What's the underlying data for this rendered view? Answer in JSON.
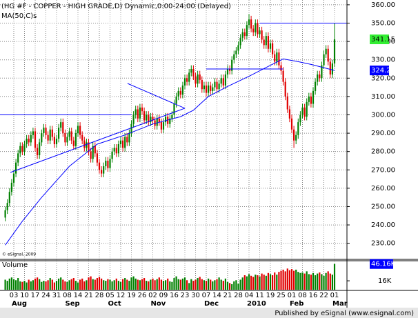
{
  "chart_data": {
    "type": "candlestick",
    "title": "(HG #F - COPPER - HIGH GRADE,D) Dynamic,0:00-24:00 (Delayed)",
    "copyright": "© eSignal, 2009",
    "footer": "Published by eSignal (www.esignal.com)",
    "up_color": "#008000",
    "down_color": "#e00000",
    "grid": true,
    "ylim": [
      221.6,
      362.6
    ],
    "yticks": [
      {
        "value": 230,
        "label": "230.00"
      },
      {
        "value": 240,
        "label": "240.00"
      },
      {
        "value": 250,
        "label": "250.00"
      },
      {
        "value": 260,
        "label": "260.00"
      },
      {
        "value": 270,
        "label": "270.00"
      },
      {
        "value": 280,
        "label": "280.00"
      },
      {
        "value": 290,
        "label": "290.00"
      },
      {
        "value": 300,
        "label": "300.00"
      },
      {
        "value": 310,
        "label": "310.00"
      },
      {
        "value": 320,
        "label": "320.00"
      },
      {
        "value": 330,
        "label": "330.00"
      },
      {
        "value": 340,
        "label": "340.00"
      },
      {
        "value": 350,
        "label": "350.00"
      },
      {
        "value": 360,
        "label": "360.00"
      }
    ],
    "categories": [
      null,
      null,
      null,
      null,
      "03",
      null,
      null,
      null,
      null,
      "10",
      null,
      null,
      null,
      null,
      "17",
      null,
      null,
      null,
      null,
      "24",
      null,
      null,
      null,
      null,
      "31",
      null,
      null,
      null,
      null,
      "08",
      null,
      null,
      null,
      null,
      "14",
      null,
      null,
      null,
      null,
      "21",
      null,
      null,
      null,
      null,
      "28",
      null,
      null,
      null,
      null,
      "05",
      null,
      null,
      null,
      null,
      "12",
      null,
      null,
      null,
      null,
      "19",
      null,
      null,
      null,
      null,
      "26",
      null,
      null,
      null,
      null,
      "02",
      null,
      null,
      null,
      null,
      "09",
      null,
      null,
      null,
      null,
      "16",
      null,
      null,
      null,
      null,
      "23",
      null,
      null,
      null,
      null,
      "30",
      null,
      null,
      null,
      null,
      "07",
      null,
      null,
      null,
      null,
      "14",
      null,
      null,
      null,
      null,
      "21",
      null,
      null,
      null,
      null,
      "28",
      null,
      null,
      null,
      null,
      "04",
      null,
      null,
      null,
      null,
      "11",
      null,
      null,
      null,
      null,
      "19",
      null,
      null,
      null,
      null,
      "25",
      null,
      null,
      null,
      null,
      "01",
      null,
      null,
      null,
      null,
      "08",
      null,
      null,
      null,
      null,
      "16",
      null,
      null,
      null,
      null,
      "22",
      null,
      null,
      null,
      null,
      "01"
    ],
    "months": [
      null,
      null,
      null,
      null,
      "Aug",
      null,
      null,
      null,
      null,
      null,
      null,
      null,
      null,
      null,
      null,
      null,
      null,
      null,
      null,
      null,
      null,
      null,
      null,
      null,
      null,
      null,
      null,
      null,
      null,
      "Sep",
      null,
      null,
      null,
      null,
      null,
      null,
      null,
      null,
      null,
      null,
      null,
      null,
      null,
      null,
      null,
      null,
      null,
      null,
      null,
      "Oct",
      null,
      null,
      null,
      null,
      null,
      null,
      null,
      null,
      null,
      null,
      null,
      null,
      null,
      null,
      null,
      null,
      null,
      null,
      null,
      "Nov",
      null,
      null,
      null,
      null,
      null,
      null,
      null,
      null,
      null,
      null,
      null,
      null,
      null,
      null,
      null,
      null,
      null,
      null,
      null,
      null,
      null,
      null,
      null,
      null,
      "Dec",
      null,
      null,
      null,
      null,
      null,
      null,
      null,
      null,
      null,
      null,
      null,
      null,
      null,
      null,
      null,
      null,
      null,
      null,
      null,
      "2010",
      null,
      null,
      null,
      null,
      null,
      null,
      null,
      null,
      null,
      null,
      null,
      null,
      null,
      null,
      null,
      null,
      null,
      null,
      null,
      "Feb",
      null,
      null,
      null,
      null,
      null,
      null,
      null,
      null,
      null,
      null,
      null,
      null,
      null,
      null,
      null,
      null,
      null,
      null,
      null,
      "Mar"
    ],
    "open": [
      244,
      248,
      252,
      258,
      263,
      268,
      274,
      279,
      283,
      280,
      284,
      287,
      285,
      289,
      291,
      282,
      278,
      285,
      290,
      293,
      289,
      286,
      292,
      288,
      284,
      287,
      293,
      296,
      290,
      285,
      288,
      291,
      286,
      283,
      290,
      294,
      289,
      286,
      282,
      285,
      280,
      276,
      283,
      279,
      274,
      270,
      268,
      272,
      275,
      271,
      276,
      280,
      282,
      279,
      284,
      286,
      282,
      288,
      285,
      290,
      295,
      300,
      303,
      298,
      304,
      302,
      297,
      300,
      296,
      299,
      297,
      294,
      298,
      296,
      292,
      296,
      299,
      295,
      298,
      300,
      306,
      310,
      313,
      311,
      316,
      320,
      318,
      323,
      325,
      321,
      317,
      322,
      319,
      314,
      316,
      312,
      316,
      313,
      315,
      318,
      314,
      317,
      320,
      316,
      322,
      325,
      324,
      330,
      333,
      335,
      338,
      342,
      345,
      343,
      349,
      352,
      347,
      345,
      350,
      344,
      346,
      341,
      338,
      343,
      336,
      339,
      333,
      329,
      334,
      327,
      324,
      318,
      310,
      303,
      298,
      292,
      286,
      289,
      296,
      300,
      304,
      299,
      307,
      310,
      306,
      313,
      318,
      322,
      320,
      327,
      333,
      336,
      329,
      322,
      328
    ],
    "high": [
      250,
      254,
      260,
      265,
      270,
      276,
      281,
      285,
      285,
      286,
      289,
      289,
      291,
      293,
      293,
      284,
      287,
      292,
      295,
      295,
      291,
      294,
      294,
      290,
      289,
      295,
      298,
      298,
      292,
      290,
      293,
      293,
      288,
      292,
      296,
      296,
      291,
      288,
      287,
      287,
      282,
      285,
      285,
      281,
      276,
      272,
      274,
      277,
      277,
      278,
      282,
      284,
      284,
      286,
      288,
      288,
      290,
      290,
      292,
      297,
      302,
      305,
      305,
      306,
      306,
      304,
      302,
      302,
      301,
      301,
      299,
      300,
      300,
      298,
      298,
      301,
      301,
      300,
      302,
      308,
      312,
      315,
      315,
      318,
      322,
      322,
      325,
      327,
      327,
      323,
      324,
      324,
      321,
      318,
      318,
      318,
      318,
      317,
      320,
      320,
      319,
      322,
      322,
      324,
      327,
      327,
      332,
      335,
      337,
      340,
      344,
      347,
      347,
      351,
      355,
      354,
      349,
      352,
      352,
      348,
      348,
      343,
      345,
      345,
      341,
      341,
      335,
      336,
      336,
      329,
      326,
      320,
      312,
      305,
      300,
      294,
      291,
      298,
      302,
      306,
      306,
      309,
      312,
      312,
      315,
      320,
      324,
      324,
      329,
      335,
      338,
      338,
      331,
      330,
      350
    ],
    "low": [
      242,
      246,
      250,
      256,
      261,
      266,
      272,
      277,
      278,
      278,
      282,
      283,
      283,
      287,
      280,
      276,
      276,
      283,
      288,
      287,
      284,
      284,
      286,
      282,
      282,
      285,
      291,
      288,
      283,
      283,
      286,
      284,
      281,
      281,
      288,
      287,
      284,
      280,
      280,
      278,
      274,
      274,
      277,
      272,
      268,
      266,
      266,
      270,
      269,
      269,
      274,
      278,
      277,
      277,
      282,
      280,
      280,
      283,
      283,
      288,
      293,
      298,
      296,
      296,
      300,
      295,
      295,
      294,
      294,
      295,
      292,
      292,
      294,
      290,
      290,
      294,
      293,
      293,
      296,
      298,
      304,
      308,
      309,
      309,
      314,
      316,
      316,
      321,
      319,
      315,
      315,
      317,
      312,
      312,
      310,
      310,
      311,
      311,
      313,
      312,
      312,
      315,
      314,
      314,
      320,
      322,
      322,
      328,
      331,
      333,
      336,
      340,
      341,
      341,
      347,
      345,
      343,
      343,
      342,
      342,
      339,
      336,
      336,
      334,
      334,
      331,
      327,
      327,
      325,
      322,
      316,
      308,
      301,
      296,
      290,
      282,
      284,
      287,
      294,
      298,
      297,
      297,
      305,
      304,
      304,
      311,
      316,
      318,
      318,
      325,
      331,
      327,
      320,
      320,
      326
    ],
    "close": [
      248,
      252,
      258,
      263,
      268,
      274,
      279,
      283,
      280,
      284,
      287,
      285,
      289,
      291,
      282,
      278,
      285,
      290,
      293,
      289,
      286,
      292,
      288,
      284,
      287,
      293,
      296,
      290,
      285,
      288,
      291,
      286,
      283,
      290,
      294,
      289,
      286,
      282,
      285,
      280,
      276,
      283,
      279,
      274,
      270,
      268,
      272,
      275,
      271,
      276,
      280,
      282,
      279,
      284,
      286,
      282,
      288,
      285,
      290,
      295,
      300,
      303,
      298,
      304,
      302,
      297,
      300,
      296,
      299,
      297,
      294,
      298,
      296,
      292,
      296,
      299,
      295,
      298,
      300,
      306,
      310,
      313,
      311,
      316,
      320,
      318,
      323,
      325,
      321,
      317,
      322,
      319,
      314,
      316,
      312,
      316,
      313,
      315,
      318,
      314,
      317,
      320,
      316,
      322,
      325,
      324,
      330,
      333,
      335,
      338,
      342,
      345,
      343,
      349,
      352,
      347,
      345,
      350,
      344,
      346,
      341,
      338,
      343,
      336,
      339,
      333,
      329,
      334,
      327,
      324,
      318,
      310,
      303,
      298,
      292,
      286,
      289,
      296,
      300,
      304,
      299,
      307,
      310,
      306,
      313,
      318,
      322,
      320,
      327,
      333,
      336,
      329,
      322,
      328,
      341.15
    ],
    "last_color": "#33ee33",
    "ma": {
      "name": "MA(50,C)s",
      "color": "#0000ff",
      "last_label": "324.20",
      "x": [
        0,
        8,
        17,
        30,
        43,
        56,
        69,
        82,
        88,
        95,
        104,
        114,
        124,
        130,
        137,
        143,
        154
      ],
      "values": [
        229,
        242,
        255,
        272,
        284,
        289,
        295,
        299,
        302.5,
        310,
        315.5,
        321,
        327,
        330.5,
        329,
        327.5,
        324.2
      ]
    },
    "trendlines": [
      {
        "color": "#0000ff",
        "points": [
          [
            -2.5,
            300
          ],
          [
            59,
            300
          ]
        ]
      },
      {
        "color": "#0000ff",
        "points": [
          [
            94,
            325
          ],
          [
            130,
            325
          ]
        ]
      },
      {
        "color": "#0000ff",
        "points": [
          [
            119,
            350
          ],
          [
            160,
            350
          ]
        ]
      },
      {
        "color": "#0000ff",
        "points": [
          [
            2.4,
            268.6
          ],
          [
            84,
            303.6
          ]
        ]
      },
      {
        "color": "#0000ff",
        "points": [
          [
            57.2,
            317.1
          ],
          [
            84,
            303.6
          ]
        ]
      }
    ],
    "volume": {
      "name": "Volume",
      "color": "#0000ff",
      "last_label": "46.16K",
      "ylim": [
        0,
        52
      ],
      "yticks": [
        {
          "value": 16,
          "label": "16K"
        }
      ],
      "values": [
        18,
        16,
        20,
        22,
        19,
        17,
        21,
        15,
        14,
        16,
        13,
        18,
        15,
        17,
        20,
        22,
        19,
        14,
        16,
        15,
        17,
        21,
        18,
        13,
        16,
        20,
        22,
        18,
        15,
        14,
        17,
        19,
        21,
        16,
        13,
        18,
        20,
        15,
        17,
        22,
        24,
        19,
        18,
        21,
        23,
        20,
        17,
        16,
        19,
        18,
        15,
        17,
        20,
        16,
        14,
        19,
        21,
        18,
        16,
        22,
        24,
        20,
        18,
        17,
        19,
        21,
        16,
        15,
        18,
        20,
        17,
        19,
        22,
        18,
        16,
        17,
        20,
        15,
        14,
        21,
        24,
        19,
        18,
        20,
        22,
        17,
        12,
        19,
        16,
        18,
        21,
        23,
        19,
        17,
        16,
        20,
        18,
        15,
        17,
        19,
        22,
        18,
        16,
        20,
        14,
        12,
        10,
        15,
        17,
        11,
        18,
        22,
        26,
        24,
        28,
        25,
        23,
        27,
        26,
        24,
        29,
        27,
        25,
        30,
        28,
        26,
        31,
        27,
        32,
        34,
        36,
        33,
        38,
        35,
        37,
        34,
        36,
        32,
        30,
        31,
        29,
        33,
        28,
        27,
        30,
        26,
        29,
        31,
        28,
        25,
        30,
        33,
        29,
        27,
        46.16
      ]
    }
  }
}
